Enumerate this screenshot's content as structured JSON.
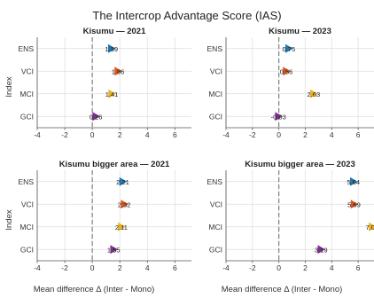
{
  "figure": {
    "title": "The Intercrop Advantage Score (IAS)",
    "ylabel": "Index",
    "xlabel": "Mean difference Δ (Inter - Mono)"
  },
  "colors": {
    "ENS": "#1f77b4",
    "VCI": "#d9541a",
    "MCI": "#edb120",
    "GCI": "#7e2f8e",
    "zero_line": "#808080",
    "grid": "#dddddd",
    "axis": "#555555"
  },
  "chart_data": [
    {
      "type": "scatter",
      "title": "Kisumu — 2021",
      "categories": [
        "ENS",
        "VCI",
        "MCI",
        "GCI"
      ],
      "values": [
        1.39,
        1.86,
        1.41,
        0.26
      ],
      "value_labels": [
        "1.39",
        "1.86",
        "1.41",
        "0.26"
      ],
      "xlim": [
        -4,
        7.2
      ],
      "xticks": [
        -4,
        -2,
        0,
        2,
        4,
        6
      ],
      "reference_line": 0
    },
    {
      "type": "scatter",
      "title": "Kisumu — 2023",
      "categories": [
        "ENS",
        "VCI",
        "MCI",
        "GCI"
      ],
      "values": [
        0.75,
        0.56,
        2.63,
        -0.03
      ],
      "value_labels": [
        "0.75",
        "0.56",
        "2.63",
        "-0.03"
      ],
      "xlim": [
        -4,
        7.2
      ],
      "xticks": [
        -4,
        -2,
        0,
        2,
        4,
        6
      ],
      "reference_line": 0
    },
    {
      "type": "scatter",
      "title": "Kisumu bigger area — 2021",
      "categories": [
        "ENS",
        "VCI",
        "MCI",
        "GCI"
      ],
      "values": [
        2.21,
        2.32,
        2.11,
        1.55
      ],
      "value_labels": [
        "2.21",
        "2.32",
        "2.11",
        "1.55"
      ],
      "xlim": [
        -4,
        7.2
      ],
      "xticks": [
        -4,
        -2,
        0,
        2,
        4,
        6
      ],
      "reference_line": 0
    },
    {
      "type": "scatter",
      "title": "Kisumu bigger area — 2023",
      "categories": [
        "ENS",
        "VCI",
        "MCI",
        "GCI"
      ],
      "values": [
        5.64,
        5.69,
        7.06,
        3.19
      ],
      "value_labels": [
        "5.64",
        "5.69",
        "7.06",
        "3.19"
      ],
      "xlim": [
        -4,
        7.2
      ],
      "xticks": [
        -4,
        -2,
        0,
        2,
        4,
        6
      ],
      "reference_line": 0
    }
  ]
}
